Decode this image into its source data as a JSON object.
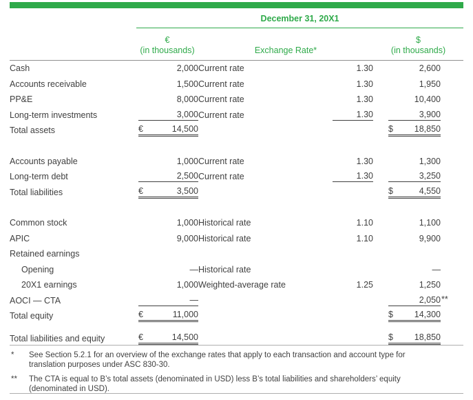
{
  "colors": {
    "green": "#2faa4a",
    "text": "#3f3f3f",
    "header_rule": "#8f8f8f",
    "footnote_rule": "#aeaeae"
  },
  "table": {
    "title": "December 31, 20X1",
    "columns": {
      "eur_symbol": "€",
      "eur_unit": "(in thousands)",
      "rate": "Exchange Rate*",
      "usd_symbol": "$",
      "usd_unit": "(in thousands)"
    },
    "rows": [
      {
        "label": "Cash",
        "eur": "2,000",
        "rate_label": "Current rate",
        "rate": "1.30",
        "usd": "2,600"
      },
      {
        "label": "Accounts receivable",
        "eur": "1,500",
        "rate_label": "Current rate",
        "rate": "1.30",
        "usd": "1,950"
      },
      {
        "label": "PP&E",
        "eur": "8,000",
        "rate_label": "Current rate",
        "rate": "1.30",
        "usd": "10,400"
      },
      {
        "label": "Long-term investments",
        "eur": "3,000",
        "rate_label": "Current rate",
        "rate": "1.30",
        "usd": "3,900",
        "ue": true,
        "ur": true,
        "uu": true
      },
      {
        "label": "Total assets",
        "eur": "14,500",
        "eur_sym": "€",
        "usd": "18,850",
        "usd_sym": "$",
        "total": true
      },
      {
        "gap": true
      },
      {
        "label": "Accounts payable",
        "eur": "1,000",
        "rate_label": "Current rate",
        "rate": "1.30",
        "usd": "1,300"
      },
      {
        "label": "Long-term debt",
        "eur": "2,500",
        "rate_label": "Current rate",
        "rate": "1.30",
        "usd": "3,250",
        "ue": true,
        "ur": true,
        "uu": true
      },
      {
        "label": "Total liabilities",
        "eur": "3,500",
        "eur_sym": "€",
        "usd": "4,550",
        "usd_sym": "$",
        "total": true
      },
      {
        "gap": true
      },
      {
        "label": "Common stock",
        "eur": "1,000",
        "rate_label": "Historical rate",
        "rate": "1.10",
        "usd": "1,100"
      },
      {
        "label": "APIC",
        "eur": "9,000",
        "rate_label": "Historical rate",
        "rate": "1.10",
        "usd": "9,900"
      },
      {
        "label": "Retained earnings"
      },
      {
        "label": "Opening",
        "indent": true,
        "eur": "—",
        "rate_label": "Historical rate",
        "usd": "—"
      },
      {
        "label": "20X1 earnings",
        "indent": true,
        "eur": "1,000",
        "rate_label": "Weighted-average rate",
        "rate": "1.25",
        "usd": "1,250"
      },
      {
        "label": "AOCI — CTA",
        "eur": "—",
        "ue": true,
        "usd": "2,050",
        "uu": true,
        "usd_marker": "**"
      },
      {
        "label": "Total equity",
        "eur": "11,000",
        "eur_sym": "€",
        "usd": "14,300",
        "usd_sym": "$",
        "total": true
      },
      {
        "gap": true,
        "small": true
      },
      {
        "label": "Total liabilities and equity",
        "eur": "14,500",
        "eur_sym": "€",
        "usd": "18,850",
        "usd_sym": "$",
        "total": true
      }
    ]
  },
  "footnotes": [
    {
      "marker": "*",
      "text": "See Section 5.2.1 for an overview of the exchange rates that apply to each transaction and account type for translation purposes under ASC 830-30."
    },
    {
      "marker": "**",
      "text": "The CTA is equal to B’s total assets (denominated in USD) less B’s total liabilities and shareholders’ equity (denominated in USD)."
    }
  ]
}
